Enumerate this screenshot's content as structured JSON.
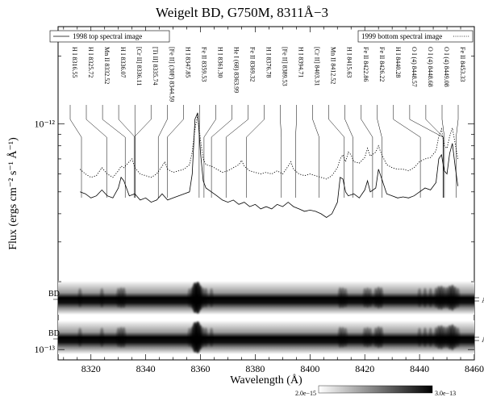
{
  "chart_data": {
    "type": "line",
    "title": "Weigelt BD, G750M, 8311Å−3",
    "xlabel": "Wavelength (Å)",
    "ylabel": "Flux (ergs cm⁻² s⁻¹ Å⁻¹)",
    "xlim": [
      8308,
      8460
    ],
    "ylim": [
      9e-14,
      2.7e-12
    ],
    "yscale": "log",
    "x_ticks": [
      "8320",
      "8340",
      "8360",
      "8380",
      "8400",
      "8420",
      "8440",
      "8460"
    ],
    "y_ticks": [
      {
        "value": 1e-12,
        "label": "10⁻¹²"
      },
      {
        "value": 1e-13,
        "label": "10⁻¹³"
      }
    ],
    "legend": [
      {
        "label": "1998 top spectral image",
        "placement": "top-left",
        "style": "solid"
      },
      {
        "label": "1999 bottom spectral image",
        "placement": "top-right",
        "style": "dotted"
      }
    ],
    "series": [
      {
        "name": "1998 top spectral image",
        "style": "solid",
        "points": [
          [
            8316,
            5e-13
          ],
          [
            8318,
            4.9e-13
          ],
          [
            8320,
            4.7e-13
          ],
          [
            8322,
            4.8e-13
          ],
          [
            8324,
            5.1e-13
          ],
          [
            8326,
            4.8e-13
          ],
          [
            8328,
            4.7e-13
          ],
          [
            8330,
            5.2e-13
          ],
          [
            8331,
            5.8e-13
          ],
          [
            8332,
            5.6e-13
          ],
          [
            8334,
            4.8e-13
          ],
          [
            8336,
            4.9e-13
          ],
          [
            8338,
            4.6e-13
          ],
          [
            8340,
            4.7e-13
          ],
          [
            8342,
            4.5e-13
          ],
          [
            8344,
            4.6e-13
          ],
          [
            8346,
            4.9e-13
          ],
          [
            8348,
            4.6e-13
          ],
          [
            8350,
            4.7e-13
          ],
          [
            8352,
            4.8e-13
          ],
          [
            8354,
            4.9e-13
          ],
          [
            8356,
            5e-13
          ],
          [
            8357,
            6e-13
          ],
          [
            8358,
            1.05e-12
          ],
          [
            8359,
            1.12e-12
          ],
          [
            8360,
            7.5e-13
          ],
          [
            8361,
            5.6e-13
          ],
          [
            8362,
            5.2e-13
          ],
          [
            8364,
            5e-13
          ],
          [
            8366,
            4.8e-13
          ],
          [
            8368,
            4.6e-13
          ],
          [
            8370,
            4.5e-13
          ],
          [
            8372,
            4.6e-13
          ],
          [
            8374,
            4.4e-13
          ],
          [
            8376,
            4.5e-13
          ],
          [
            8378,
            4.3e-13
          ],
          [
            8380,
            4.4e-13
          ],
          [
            8382,
            4.2e-13
          ],
          [
            8384,
            4.3e-13
          ],
          [
            8386,
            4.2e-13
          ],
          [
            8388,
            4.4e-13
          ],
          [
            8390,
            4.3e-13
          ],
          [
            8392,
            4.5e-13
          ],
          [
            8394,
            4.3e-13
          ],
          [
            8396,
            4.2e-13
          ],
          [
            8398,
            4.1e-13
          ],
          [
            8400,
            4.15e-13
          ],
          [
            8402,
            4.1e-13
          ],
          [
            8404,
            4e-13
          ],
          [
            8406,
            3.85e-13
          ],
          [
            8408,
            4e-13
          ],
          [
            8410,
            4.5e-13
          ],
          [
            8411,
            5.8e-13
          ],
          [
            8412,
            5.7e-13
          ],
          [
            8413,
            5e-13
          ],
          [
            8414,
            4.8e-13
          ],
          [
            8416,
            4.9e-13
          ],
          [
            8418,
            4.7e-13
          ],
          [
            8420,
            5.1e-13
          ],
          [
            8421,
            5.6e-13
          ],
          [
            8422,
            5e-13
          ],
          [
            8424,
            5.2e-13
          ],
          [
            8425,
            6.3e-13
          ],
          [
            8426,
            5.8e-13
          ],
          [
            8428,
            4.9e-13
          ],
          [
            8430,
            4.8e-13
          ],
          [
            8432,
            4.7e-13
          ],
          [
            8434,
            4.75e-13
          ],
          [
            8436,
            4.7e-13
          ],
          [
            8438,
            4.8e-13
          ],
          [
            8440,
            5e-13
          ],
          [
            8442,
            5.2e-13
          ],
          [
            8444,
            5.1e-13
          ],
          [
            8446,
            5.5e-13
          ],
          [
            8447,
            7e-13
          ],
          [
            8448,
            7.3e-13
          ],
          [
            8449,
            6.2e-13
          ],
          [
            8450,
            6e-13
          ],
          [
            8451,
            7.4e-13
          ],
          [
            8452,
            8.2e-13
          ],
          [
            8453,
            6.5e-13
          ],
          [
            8454,
            5.3e-13
          ]
        ]
      },
      {
        "name": "1999 bottom spectral image",
        "style": "dotted",
        "points": [
          [
            8316,
            6.3e-13
          ],
          [
            8318,
            6e-13
          ],
          [
            8320,
            5.8e-13
          ],
          [
            8322,
            5.9e-13
          ],
          [
            8324,
            6.4e-13
          ],
          [
            8326,
            6e-13
          ],
          [
            8328,
            5.8e-13
          ],
          [
            8330,
            6.2e-13
          ],
          [
            8331,
            6.5e-13
          ],
          [
            8332,
            6.4e-13
          ],
          [
            8334,
            6.8e-13
          ],
          [
            8335,
            7e-13
          ],
          [
            8336,
            6.4e-13
          ],
          [
            8338,
            6e-13
          ],
          [
            8340,
            5.9e-13
          ],
          [
            8342,
            5.8e-13
          ],
          [
            8344,
            6e-13
          ],
          [
            8346,
            6.5e-13
          ],
          [
            8347,
            6.8e-13
          ],
          [
            8348,
            6.3e-13
          ],
          [
            8350,
            6.1e-13
          ],
          [
            8352,
            6.2e-13
          ],
          [
            8354,
            6.3e-13
          ],
          [
            8356,
            6.6e-13
          ],
          [
            8357,
            7.5e-13
          ],
          [
            8358,
            9.5e-13
          ],
          [
            8359,
            1.1e-12
          ],
          [
            8360,
            8.5e-13
          ],
          [
            8361,
            7e-13
          ],
          [
            8362,
            6.6e-13
          ],
          [
            8364,
            6.5e-13
          ],
          [
            8366,
            6.3e-13
          ],
          [
            8368,
            6.1e-13
          ],
          [
            8370,
            6.2e-13
          ],
          [
            8372,
            6.4e-13
          ],
          [
            8374,
            6.6e-13
          ],
          [
            8375,
            6.9e-13
          ],
          [
            8376,
            6.5e-13
          ],
          [
            8378,
            6.2e-13
          ],
          [
            8380,
            6.1e-13
          ],
          [
            8382,
            6e-13
          ],
          [
            8384,
            6.1e-13
          ],
          [
            8386,
            6e-13
          ],
          [
            8388,
            6.2e-13
          ],
          [
            8390,
            6e-13
          ],
          [
            8392,
            6.5e-13
          ],
          [
            8393,
            6.8e-13
          ],
          [
            8394,
            6.3e-13
          ],
          [
            8396,
            6e-13
          ],
          [
            8398,
            5.9e-13
          ],
          [
            8400,
            6e-13
          ],
          [
            8402,
            5.9e-13
          ],
          [
            8404,
            5.8e-13
          ],
          [
            8406,
            5.7e-13
          ],
          [
            8408,
            5.9e-13
          ],
          [
            8410,
            6.4e-13
          ],
          [
            8411,
            7e-13
          ],
          [
            8412,
            7.3e-13
          ],
          [
            8413,
            6.8e-13
          ],
          [
            8414,
            7.5e-13
          ],
          [
            8415,
            7.3e-13
          ],
          [
            8416,
            6.8e-13
          ],
          [
            8418,
            6.7e-13
          ],
          [
            8420,
            7.1e-13
          ],
          [
            8421,
            7.8e-13
          ],
          [
            8422,
            7.2e-13
          ],
          [
            8424,
            7.5e-13
          ],
          [
            8425,
            8e-13
          ],
          [
            8426,
            7.4e-13
          ],
          [
            8428,
            6.6e-13
          ],
          [
            8430,
            6.4e-13
          ],
          [
            8432,
            6.3e-13
          ],
          [
            8434,
            6.3e-13
          ],
          [
            8436,
            6.2e-13
          ],
          [
            8438,
            6.4e-13
          ],
          [
            8440,
            6.8e-13
          ],
          [
            8442,
            7e-13
          ],
          [
            8444,
            7.1e-13
          ],
          [
            8446,
            7.6e-13
          ],
          [
            8447,
            8.8e-13
          ],
          [
            8448,
            9.5e-13
          ],
          [
            8449,
            8e-13
          ],
          [
            8450,
            7.8e-13
          ],
          [
            8451,
            8.8e-13
          ],
          [
            8452,
            9.6e-13
          ],
          [
            8453,
            8.2e-13
          ],
          [
            8454,
            7e-13
          ]
        ]
      }
    ],
    "line_ids": [
      {
        "label": "H I 8316.55",
        "x": 8316.55
      },
      {
        "label": "H I 8325.72",
        "x": 8325.72
      },
      {
        "label": "Mn II 8332.52",
        "x": 8332.52
      },
      {
        "label": "H I 8336.07",
        "x": 8336.07
      },
      {
        "label": "[Cr II] 8336.11",
        "x": 8336.11
      },
      {
        "label": "[Ti II] 8335.74",
        "x": 8335.74
      },
      {
        "label": "[Fe II] (30F) 8344.59",
        "x": 8344.59
      },
      {
        "label": "H I 8347.85",
        "x": 8347.85
      },
      {
        "label": "Fe II 8359.53",
        "x": 8359.53
      },
      {
        "label": "H I 8361.30",
        "x": 8361.3
      },
      {
        "label": "He I (68) 8363.99",
        "x": 8363.99
      },
      {
        "label": "Fe II 8369.32",
        "x": 8369.32
      },
      {
        "label": "H I 8376.78",
        "x": 8376.78
      },
      {
        "label": "[Fe II] 8389.53",
        "x": 8389.53
      },
      {
        "label": "H I 8394.71",
        "x": 8394.71
      },
      {
        "label": "[Cr II] 8403.31",
        "x": 8403.31
      },
      {
        "label": "Mn II 8412.52",
        "x": 8412.52
      },
      {
        "label": "H I 8415.63",
        "x": 8415.63
      },
      {
        "label": "Fe II 8422.86",
        "x": 8422.86
      },
      {
        "label": "Fe II 8426.22",
        "x": 8426.22
      },
      {
        "label": "H I 8440.28",
        "x": 8440.28
      },
      {
        "label": "O I (4) 8448.57",
        "x": 8448.57
      },
      {
        "label": "O I (4) 8448.68",
        "x": 8448.68
      },
      {
        "label": "O I (4) 8449.08",
        "x": 8449.08
      },
      {
        "label": "Fe II 8453.33",
        "x": 8453.33
      }
    ],
    "spectral_images": [
      {
        "left_label": "BD",
        "right_label": "A",
        "position": "upper"
      },
      {
        "left_label": "BD",
        "right_label": "A",
        "position": "lower"
      }
    ],
    "colorbar": {
      "min_label": "2.0e−15",
      "max_label": "3.0e−13"
    },
    "grid": false
  }
}
